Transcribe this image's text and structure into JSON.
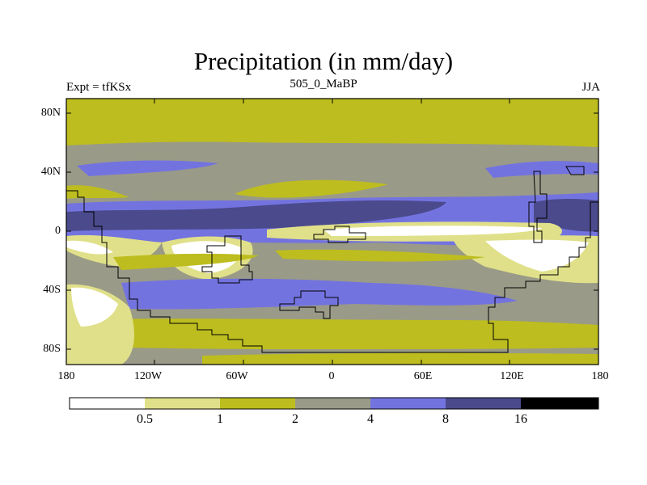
{
  "chart_data": {
    "type": "map",
    "title": "Precipitation (in mm/day)",
    "left_label": "Expt = tfKSx",
    "center_label": "505_0_MaBP",
    "right_label": "JJA",
    "lat_ticks": [
      "80N",
      "40N",
      "0",
      "40S",
      "80S"
    ],
    "lon_ticks": [
      "180",
      "120W",
      "60W",
      "0",
      "60E",
      "120E",
      "180"
    ],
    "colorbar": {
      "levels": [
        "0.5",
        "1",
        "2",
        "4",
        "8",
        "16"
      ],
      "colors": [
        "#ffffff",
        "#e0e08a",
        "#bdbd1f",
        "#9a9a88",
        "#7373e0",
        "#4a4a8c",
        "#000000"
      ]
    }
  }
}
